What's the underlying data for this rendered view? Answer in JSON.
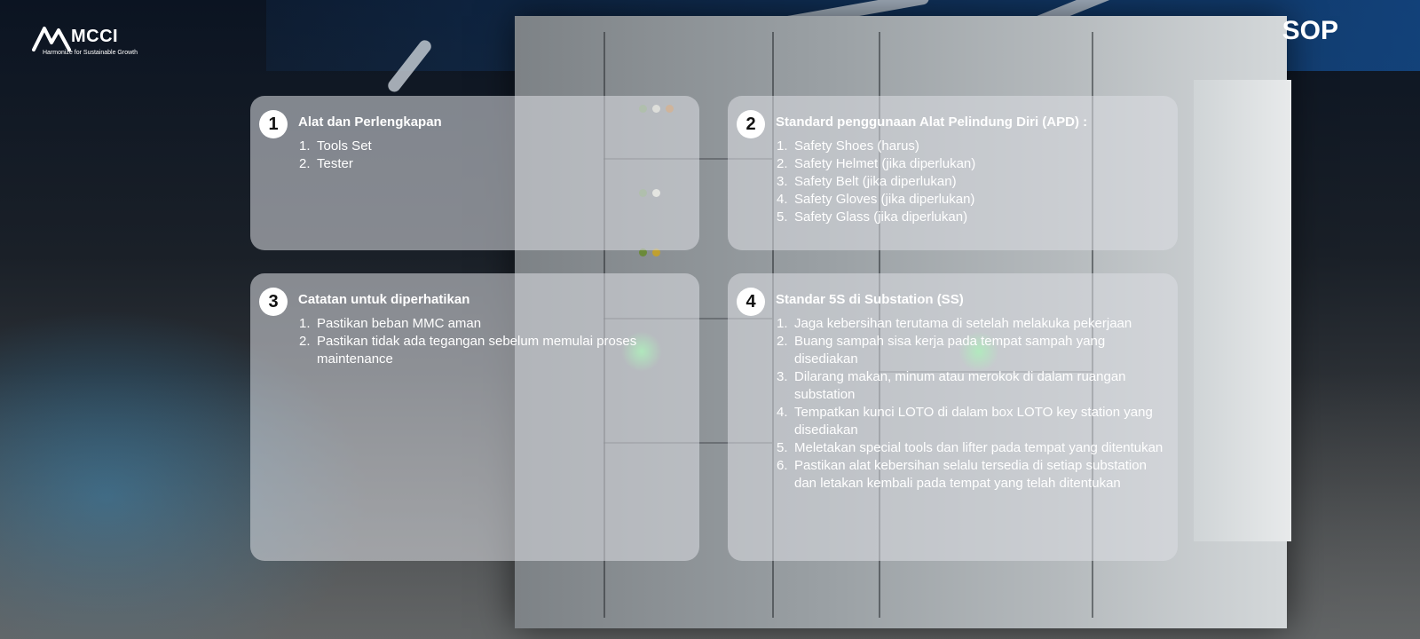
{
  "brand": {
    "name": "MCCI",
    "tagline": "Harmonize for Sustainable Growth"
  },
  "page": {
    "title": "SOP"
  },
  "cards": [
    {
      "number": "1",
      "title": "Alat dan Perlengkapan",
      "items": [
        {
          "n": "1.",
          "text": "Tools Set"
        },
        {
          "n": "2.",
          "text": "Tester"
        }
      ]
    },
    {
      "number": "2",
      "title": "Standard penggunaan Alat Pelindung Diri (APD) :",
      "items": [
        {
          "n": "1.",
          "text": "Safety Shoes (harus)"
        },
        {
          "n": "2.",
          "text": "Safety Helmet (jika diperlukan)"
        },
        {
          "n": "3.",
          "text": "Safety Belt (jika diperlukan)"
        },
        {
          "n": "4.",
          "text": "Safety Gloves (jika diperlukan)"
        },
        {
          "n": "5.",
          "text": "Safety Glass (jika diperlukan)"
        }
      ]
    },
    {
      "number": "3",
      "title": "Catatan untuk diperhatikan",
      "items": [
        {
          "n": "1.",
          "text": "Pastikan beban MMC aman"
        },
        {
          "n": "2.",
          "text": "Pastikan tidak ada tegangan sebelum memulai proses maintenance"
        }
      ]
    },
    {
      "number": "4",
      "title": "Standar 5S di Substation (SS)",
      "items": [
        {
          "n": "1.",
          "text": "Jaga kebersihan terutama di setelah melakuka pekerjaan"
        },
        {
          "n": "2.",
          "text": "Buang sampah sisa kerja pada tempat sampah yang disediakan"
        },
        {
          "n": "3.",
          "text": "Dilarang makan, minum atau merokok di dalam ruangan substation"
        },
        {
          "n": "4.",
          "text": "Tempatkan kunci LOTO di dalam box LOTO key station yang disediakan"
        },
        {
          "n": "5.",
          "text": "Meletakan special tools dan lifter pada tempat yang ditentukan"
        },
        {
          "n": "6.",
          "text": "Pastikan alat kebersihan selalu tersedia di setiap substation dan letakan kembali pada tempat yang telah ditentukan"
        }
      ]
    }
  ],
  "colors": {
    "card_bg": "#dcdee2",
    "text": "#ffffff",
    "accent_blue": "#1f6fb0"
  }
}
